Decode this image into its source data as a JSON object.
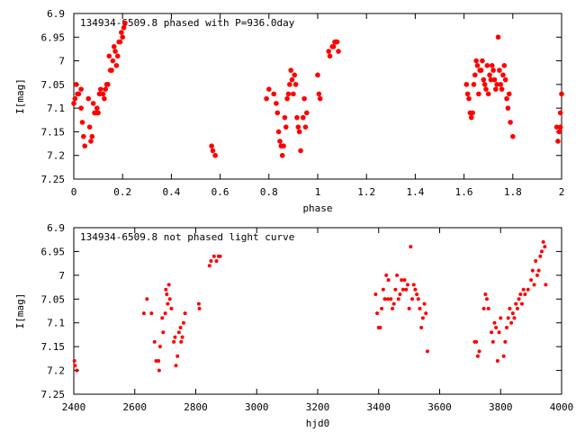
{
  "chart_data": [
    {
      "type": "scatter",
      "title": "134934-6509.8 phased with P=936.0day",
      "xlabel": "phase",
      "ylabel": "I[mag]",
      "xlim": [
        0,
        2
      ],
      "ylim": [
        7.25,
        6.9
      ],
      "y_inverted": true,
      "x_ticks": [
        "0",
        "0.2",
        "0.4",
        "0.6",
        "0.8",
        "1",
        "1.2",
        "1.4",
        "1.6",
        "1.8",
        "2"
      ],
      "y_ticks": [
        "6.9",
        "6.95",
        "7",
        "7.05",
        "7.1",
        "7.15",
        "7.2",
        "7.25"
      ],
      "marker_color": "#ff0000",
      "marker": "filled-circle",
      "series": [
        {
          "points": [
            [
              0.0,
              7.09
            ],
            [
              0.005,
              7.08
            ],
            [
              0.01,
              7.05
            ],
            [
              0.015,
              7.07
            ],
            [
              0.02,
              7.07
            ],
            [
              0.03,
              7.06
            ],
            [
              0.03,
              7.1
            ],
            [
              0.035,
              7.13
            ],
            [
              0.04,
              7.16
            ],
            [
              0.045,
              7.18
            ],
            [
              0.06,
              7.08
            ],
            [
              0.065,
              7.14
            ],
            [
              0.07,
              7.17
            ],
            [
              0.075,
              7.16
            ],
            [
              0.08,
              7.09
            ],
            [
              0.085,
              7.11
            ],
            [
              0.09,
              7.11
            ],
            [
              0.095,
              7.1
            ],
            [
              0.1,
              7.11
            ],
            [
              0.105,
              7.07
            ],
            [
              0.11,
              7.06
            ],
            [
              0.12,
              7.07
            ],
            [
              0.125,
              7.08
            ],
            [
              0.13,
              7.06
            ],
            [
              0.135,
              7.05
            ],
            [
              0.14,
              7.05
            ],
            [
              0.145,
              6.99
            ],
            [
              0.15,
              7.02
            ],
            [
              0.155,
              7.02
            ],
            [
              0.16,
              7.0
            ],
            [
              0.165,
              6.97
            ],
            [
              0.17,
              6.98
            ],
            [
              0.175,
              7.01
            ],
            [
              0.18,
              6.99
            ],
            [
              0.185,
              6.96
            ],
            [
              0.19,
              6.96
            ],
            [
              0.195,
              6.94
            ],
            [
              0.2,
              6.95
            ],
            [
              0.205,
              6.93
            ],
            [
              0.21,
              6.92
            ],
            [
              0.565,
              7.18
            ],
            [
              0.57,
              7.19
            ],
            [
              0.58,
              7.2
            ],
            [
              0.79,
              7.08
            ],
            [
              0.8,
              7.06
            ],
            [
              0.82,
              7.07
            ],
            [
              0.83,
              7.09
            ],
            [
              0.835,
              7.11
            ],
            [
              0.84,
              7.15
            ],
            [
              0.845,
              7.17
            ],
            [
              0.85,
              7.18
            ],
            [
              0.855,
              7.2
            ],
            [
              0.86,
              7.18
            ],
            [
              0.865,
              7.12
            ],
            [
              0.87,
              7.14
            ],
            [
              0.875,
              7.08
            ],
            [
              0.88,
              7.07
            ],
            [
              0.885,
              7.05
            ],
            [
              0.89,
              7.02
            ],
            [
              0.895,
              7.04
            ],
            [
              0.9,
              7.07
            ],
            [
              0.905,
              7.03
            ],
            [
              0.91,
              7.05
            ],
            [
              0.915,
              7.12
            ],
            [
              0.92,
              7.14
            ],
            [
              0.925,
              7.15
            ],
            [
              0.93,
              7.19
            ],
            [
              0.94,
              7.12
            ],
            [
              0.945,
              7.08
            ],
            [
              0.95,
              7.14
            ],
            [
              0.955,
              7.11
            ],
            [
              1.0,
              7.03
            ],
            [
              1.005,
              7.07
            ],
            [
              1.01,
              7.08
            ],
            [
              1.045,
              6.98
            ],
            [
              1.05,
              6.99
            ],
            [
              1.06,
              6.97
            ],
            [
              1.065,
              6.97
            ],
            [
              1.07,
              6.96
            ],
            [
              1.075,
              6.96
            ],
            [
              1.08,
              6.96
            ],
            [
              1.085,
              6.98
            ],
            [
              1.61,
              7.05
            ],
            [
              1.615,
              7.07
            ],
            [
              1.62,
              7.08
            ],
            [
              1.625,
              7.11
            ],
            [
              1.63,
              7.12
            ],
            [
              1.635,
              7.11
            ],
            [
              1.64,
              7.05
            ],
            [
              1.645,
              7.03
            ],
            [
              1.65,
              7.0
            ],
            [
              1.655,
              7.01
            ],
            [
              1.66,
              7.07
            ],
            [
              1.665,
              7.02
            ],
            [
              1.67,
              7.02
            ],
            [
              1.675,
              7.0
            ],
            [
              1.68,
              7.04
            ],
            [
              1.685,
              7.05
            ],
            [
              1.69,
              7.06
            ],
            [
              1.695,
              7.01
            ],
            [
              1.7,
              7.07
            ],
            [
              1.705,
              7.03
            ],
            [
              1.71,
              7.04
            ],
            [
              1.715,
              7.01
            ],
            [
              1.72,
              7.02
            ],
            [
              1.725,
              7.04
            ],
            [
              1.73,
              7.06
            ],
            [
              1.735,
              7.05
            ],
            [
              1.74,
              6.95
            ],
            [
              1.745,
              7.02
            ],
            [
              1.75,
              7.05
            ],
            [
              1.755,
              7.06
            ],
            [
              1.76,
              7.03
            ],
            [
              1.765,
              7.01
            ],
            [
              1.77,
              7.04
            ],
            [
              1.775,
              7.08
            ],
            [
              1.78,
              7.1
            ],
            [
              1.785,
              7.07
            ],
            [
              1.79,
              7.13
            ],
            [
              1.8,
              7.16
            ],
            [
              1.98,
              7.14
            ],
            [
              1.985,
              7.17
            ],
            [
              1.99,
              7.15
            ],
            [
              1.995,
              7.14
            ],
            [
              2.0,
              7.07
            ],
            [
              1.995,
              7.11
            ]
          ]
        }
      ]
    },
    {
      "type": "scatter",
      "title": "134934-6509.8 not phased light curve",
      "xlabel": "hjd0",
      "ylabel": "I[mag]",
      "xlim": [
        2400,
        4000
      ],
      "ylim": [
        7.25,
        6.9
      ],
      "y_inverted": true,
      "x_ticks": [
        "2400",
        "2600",
        "2800",
        "3000",
        "3200",
        "3400",
        "3600",
        "3800",
        "4000"
      ],
      "y_ticks": [
        "6.9",
        "6.95",
        "7",
        "7.05",
        "7.1",
        "7.15",
        "7.2",
        "7.25"
      ],
      "marker_color": "#ff0000",
      "marker": "filled-circle",
      "series": [
        {
          "points": [
            [
              2402,
              7.18
            ],
            [
              2404,
              7.19
            ],
            [
              2410,
              7.2
            ],
            [
              2630,
              7.08
            ],
            [
              2640,
              7.05
            ],
            [
              2655,
              7.08
            ],
            [
              2665,
              7.14
            ],
            [
              2670,
              7.18
            ],
            [
              2678,
              7.18
            ],
            [
              2680,
              7.2
            ],
            [
              2683,
              7.15
            ],
            [
              2690,
              7.09
            ],
            [
              2693,
              7.12
            ],
            [
              2700,
              7.08
            ],
            [
              2702,
              7.03
            ],
            [
              2705,
              7.04
            ],
            [
              2708,
              7.06
            ],
            [
              2712,
              7.02
            ],
            [
              2715,
              7.05
            ],
            [
              2720,
              7.07
            ],
            [
              2728,
              7.14
            ],
            [
              2732,
              7.13
            ],
            [
              2735,
              7.19
            ],
            [
              2740,
              7.17
            ],
            [
              2745,
              7.12
            ],
            [
              2750,
              7.11
            ],
            [
              2752,
              7.14
            ],
            [
              2756,
              7.13
            ],
            [
              2760,
              7.1
            ],
            [
              2765,
              7.08
            ],
            [
              2810,
              7.06
            ],
            [
              2812,
              7.07
            ],
            [
              2845,
              6.98
            ],
            [
              2850,
              6.97
            ],
            [
              2860,
              6.96
            ],
            [
              2868,
              6.97
            ],
            [
              2875,
              6.96
            ],
            [
              2880,
              6.96
            ],
            [
              3390,
              7.04
            ],
            [
              3395,
              7.08
            ],
            [
              3400,
              7.11
            ],
            [
              3405,
              7.11
            ],
            [
              3410,
              7.07
            ],
            [
              3415,
              7.03
            ],
            [
              3420,
              7.05
            ],
            [
              3425,
              7.0
            ],
            [
              3430,
              7.05
            ],
            [
              3432,
              7.01
            ],
            [
              3440,
              7.05
            ],
            [
              3445,
              7.07
            ],
            [
              3450,
              7.06
            ],
            [
              3455,
              7.03
            ],
            [
              3460,
              7.0
            ],
            [
              3465,
              7.05
            ],
            [
              3470,
              7.04
            ],
            [
              3475,
              7.01
            ],
            [
              3480,
              7.03
            ],
            [
              3485,
              7.01
            ],
            [
              3490,
              7.03
            ],
            [
              3495,
              7.02
            ],
            [
              3500,
              7.07
            ],
            [
              3505,
              6.94
            ],
            [
              3510,
              7.05
            ],
            [
              3515,
              7.02
            ],
            [
              3520,
              7.03
            ],
            [
              3525,
              7.04
            ],
            [
              3530,
              7.05
            ],
            [
              3535,
              7.07
            ],
            [
              3540,
              7.11
            ],
            [
              3545,
              7.09
            ],
            [
              3550,
              7.06
            ],
            [
              3555,
              7.08
            ],
            [
              3560,
              7.16
            ],
            [
              3715,
              7.14
            ],
            [
              3720,
              7.14
            ],
            [
              3725,
              7.17
            ],
            [
              3730,
              7.16
            ],
            [
              3745,
              7.07
            ],
            [
              3750,
              7.04
            ],
            [
              3755,
              7.05
            ],
            [
              3760,
              7.07
            ],
            [
              3770,
              7.12
            ],
            [
              3775,
              7.14
            ],
            [
              3780,
              7.1
            ],
            [
              3785,
              7.11
            ],
            [
              3790,
              7.18
            ],
            [
              3795,
              7.12
            ],
            [
              3800,
              7.09
            ],
            [
              3810,
              7.17
            ],
            [
              3815,
              7.14
            ],
            [
              3820,
              7.11
            ],
            [
              3825,
              7.09
            ],
            [
              3830,
              7.07
            ],
            [
              3835,
              7.1
            ],
            [
              3840,
              7.08
            ],
            [
              3845,
              7.09
            ],
            [
              3850,
              7.06
            ],
            [
              3855,
              7.07
            ],
            [
              3860,
              7.05
            ],
            [
              3865,
              7.04
            ],
            [
              3870,
              7.06
            ],
            [
              3875,
              7.03
            ],
            [
              3880,
              7.04
            ],
            [
              3890,
              7.03
            ],
            [
              3900,
              7.01
            ],
            [
              3905,
              6.99
            ],
            [
              3910,
              7.02
            ],
            [
              3915,
              6.97
            ],
            [
              3920,
              7.0
            ],
            [
              3925,
              6.99
            ],
            [
              3930,
              6.96
            ],
            [
              3935,
              6.95
            ],
            [
              3940,
              6.93
            ],
            [
              3945,
              6.94
            ],
            [
              3948,
              7.02
            ]
          ]
        }
      ]
    }
  ]
}
